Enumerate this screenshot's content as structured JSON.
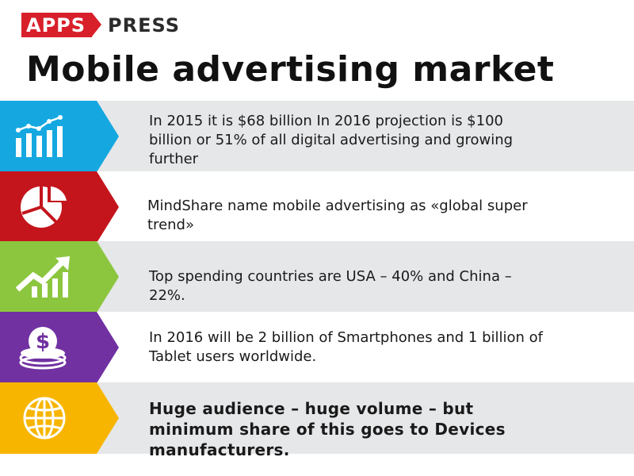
{
  "logo": {
    "part1": "APPS",
    "part2": "PRESS"
  },
  "title": "Mobile advertising market",
  "items": [
    {
      "icon": "bar-chart-icon",
      "color": "#15a8e0",
      "text": "In 2015 it is $68 billion In 2016 projection is $100 billion or 51% of all digital advertising and growing further",
      "bold": false
    },
    {
      "icon": "pie-chart-icon",
      "color": "#c4151c",
      "text": "MindShare name mobile advertising as «global super trend»",
      "bold": false
    },
    {
      "icon": "growth-chart-icon",
      "color": "#8cc63f",
      "text": "Top spending countries are USA – 40% and China – 22%.",
      "bold": false
    },
    {
      "icon": "dollar-coins-icon",
      "color": "#7131a1",
      "text": "In 2016 will be 2 billion of Smartphones and 1 billion of Tablet users worldwide.",
      "bold": false
    },
    {
      "icon": "globe-icon",
      "color": "#f7b500",
      "text": "Huge audience – huge volume – but minimum share of this goes to Devices manufacturers.",
      "bold": true
    }
  ]
}
